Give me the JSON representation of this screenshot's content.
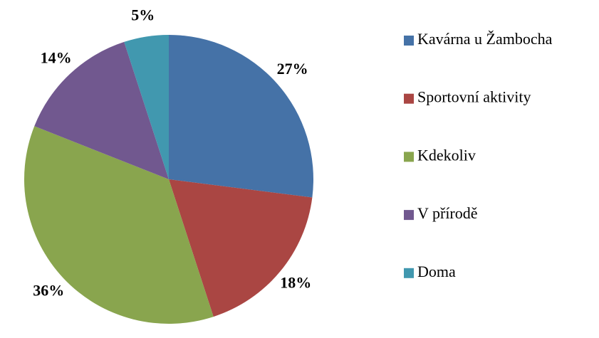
{
  "chart_data": {
    "type": "pie",
    "categories": [
      "Kavárna u Žambocha",
      "Sportovní aktivity",
      "Kdekoliv",
      "V přírodě",
      "Doma"
    ],
    "values": [
      27,
      18,
      36,
      14,
      5
    ],
    "value_labels": [
      "27%",
      "18%",
      "36%",
      "14%",
      "5%"
    ],
    "colors": [
      "#4572a7",
      "#aa4643",
      "#89a54e",
      "#71588f",
      "#4198af"
    ],
    "legend": "right"
  }
}
